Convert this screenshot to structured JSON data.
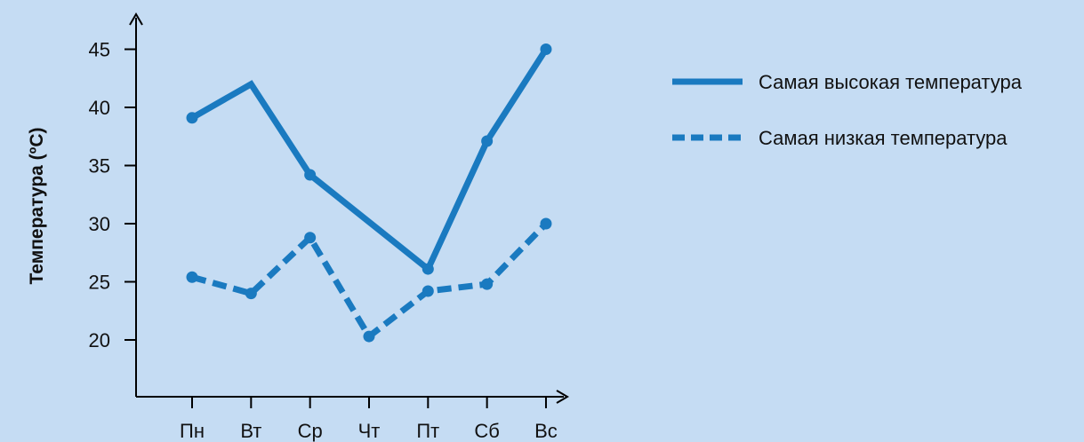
{
  "chart_data": {
    "type": "line",
    "categories": [
      "Пн",
      "Вт",
      "Ср",
      "Чт",
      "Пт",
      "Сб",
      "Вс"
    ],
    "ylabel": "Температура (ºС)",
    "xlabel": "",
    "ylim": [
      15,
      50
    ],
    "yticks": [
      20,
      25,
      30,
      35,
      40,
      45
    ],
    "grid": false,
    "legend_position": "top-right",
    "series": [
      {
        "name": "Самая высокая температура",
        "style": "solid",
        "color": "#1a7ac0",
        "values": [
          39.1,
          42.0,
          34.2,
          null,
          26.1,
          37.1,
          45.0
        ],
        "line_points": [
          [
            0,
            39.1
          ],
          [
            1,
            42.0
          ],
          [
            2,
            34.2
          ],
          [
            4,
            26.1
          ],
          [
            5,
            37.1
          ],
          [
            6,
            45.0
          ]
        ],
        "markers": [
          0,
          2,
          4,
          5,
          6
        ]
      },
      {
        "name": "Самая низкая температура",
        "style": "dashed",
        "color": "#1a7ac0",
        "values": [
          25.4,
          24.0,
          28.8,
          20.3,
          24.2,
          24.8,
          30.0
        ],
        "line_points": [
          [
            0,
            25.4
          ],
          [
            1,
            24.0
          ],
          [
            2,
            28.8
          ],
          [
            3,
            20.3
          ],
          [
            4,
            24.2
          ],
          [
            5,
            24.8
          ],
          [
            6,
            30.0
          ]
        ],
        "markers": [
          0,
          1,
          2,
          3,
          4,
          5,
          6
        ]
      }
    ]
  },
  "colors": {
    "background": "#c5dcf3",
    "series": "#1a7ac0",
    "axis": "#000000"
  }
}
